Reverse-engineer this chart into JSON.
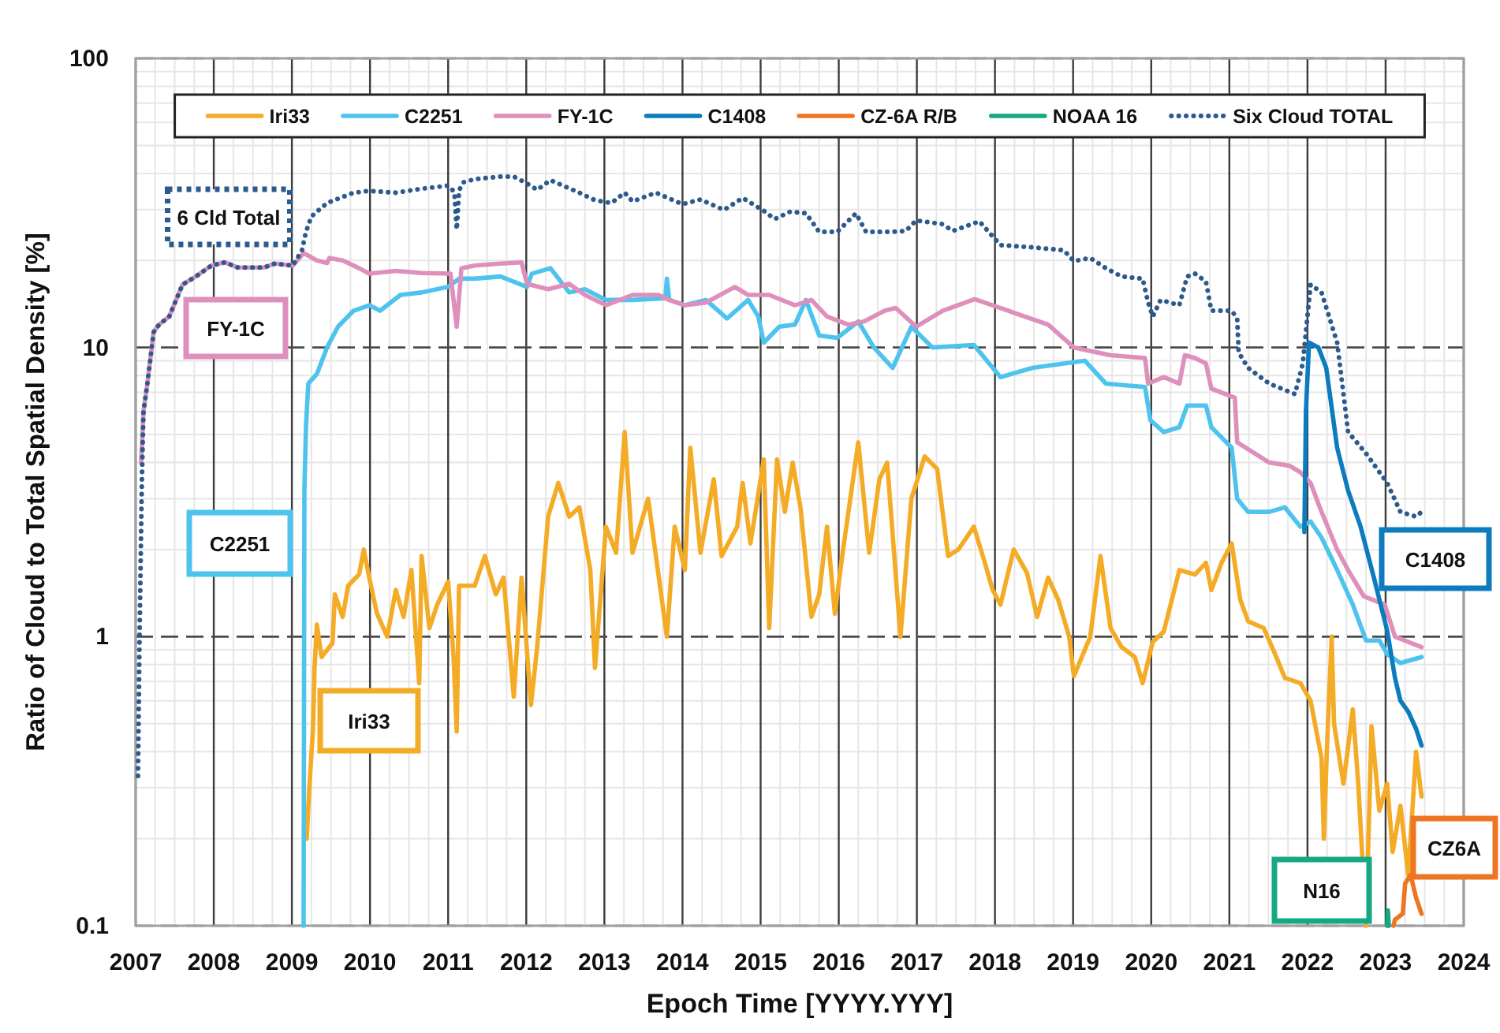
{
  "chart_data": {
    "type": "line",
    "xlabel": "Epoch Time [YYYY.YYY]",
    "ylabel": "Ratio of Cloud to Total Spatial Density [%]",
    "xlim": [
      2007,
      2024
    ],
    "xticks": [
      2007,
      2008,
      2009,
      2010,
      2011,
      2012,
      2013,
      2014,
      2015,
      2016,
      2017,
      2018,
      2019,
      2020,
      2021,
      2022,
      2023,
      2024
    ],
    "ylim": [
      0.1,
      100
    ],
    "yticks": [
      0.1,
      1,
      10,
      100
    ],
    "log": true,
    "grid": true,
    "legend": "top",
    "line_style": "solid",
    "annotations": [
      "Iri33",
      "C2251",
      "FY-1C",
      "C1408",
      "CZ6A",
      "N16",
      "6 Cld Total"
    ],
    "series": [
      {
        "name": "Iri33",
        "color": "#f4ab25",
        "x": [
          2009.19,
          2009.22,
          2009.27,
          2009.29,
          2009.32,
          2009.38,
          2009.52,
          2009.55,
          2009.65,
          2009.72,
          2009.86,
          2009.92,
          2009.99,
          2010.09,
          2010.22,
          2010.33,
          2010.43,
          2010.53,
          2010.63,
          2010.66,
          2010.76,
          2010.86,
          2011.0,
          2011.07,
          2011.11,
          2011.14,
          2011.34,
          2011.47,
          2011.61,
          2011.71,
          2011.84,
          2011.94,
          2012.06,
          2012.14,
          2012.28,
          2012.41,
          2012.55,
          2012.68,
          2012.82,
          2012.88,
          2013.02,
          2013.15,
          2013.26,
          2013.36,
          2013.56,
          2013.8,
          2013.9,
          2014.03,
          2014.1,
          2014.23,
          2014.4,
          2014.5,
          2014.7,
          2014.77,
          2014.87,
          2015.04,
          2015.11,
          2015.21,
          2015.31,
          2015.41,
          2015.51,
          2015.65,
          2015.75,
          2015.85,
          2015.95,
          2016.05,
          2016.25,
          2016.39,
          2016.52,
          2016.62,
          2016.79,
          2016.93,
          2017.1,
          2017.26,
          2017.4,
          2017.53,
          2017.73,
          2017.87,
          2017.97,
          2018.07,
          2018.24,
          2018.41,
          2018.54,
          2018.68,
          2018.81,
          2018.95,
          2019.01,
          2019.22,
          2019.35,
          2019.48,
          2019.62,
          2019.79,
          2019.89,
          2020.02,
          2020.16,
          2020.36,
          2020.56,
          2020.7,
          2020.77,
          2020.9,
          2021.03,
          2021.14,
          2021.24,
          2021.44,
          2021.57,
          2021.71,
          2021.91,
          2022.04,
          2022.18,
          2022.21,
          2022.25,
          2022.31,
          2022.34,
          2022.46,
          2022.58,
          2022.65,
          2022.75,
          2022.82,
          2022.92,
          2023.02,
          2023.09,
          2023.19,
          2023.29,
          2023.39,
          2023.46
        ],
        "values": [
          0.2,
          0.29,
          0.48,
          0.78,
          1.1,
          0.85,
          0.95,
          1.4,
          1.17,
          1.5,
          1.64,
          2.0,
          1.6,
          1.2,
          1.0,
          1.45,
          1.17,
          1.7,
          0.69,
          1.9,
          1.07,
          1.29,
          1.55,
          0.85,
          0.47,
          1.5,
          1.5,
          1.9,
          1.4,
          1.6,
          0.62,
          1.6,
          0.58,
          0.92,
          2.6,
          3.4,
          2.6,
          2.8,
          1.7,
          0.78,
          2.4,
          1.95,
          5.1,
          1.95,
          3.0,
          1.0,
          2.4,
          1.7,
          4.5,
          1.95,
          3.5,
          1.9,
          2.4,
          3.4,
          2.1,
          4.1,
          1.07,
          4.1,
          2.7,
          4.0,
          2.8,
          1.17,
          1.4,
          2.4,
          1.2,
          1.95,
          4.7,
          1.95,
          3.5,
          4.0,
          1.0,
          3.0,
          4.2,
          3.8,
          1.9,
          2.0,
          2.4,
          1.8,
          1.45,
          1.29,
          2.0,
          1.66,
          1.17,
          1.6,
          1.34,
          1.0,
          0.73,
          1.0,
          1.9,
          1.07,
          0.92,
          0.85,
          0.69,
          0.96,
          1.04,
          1.7,
          1.64,
          1.8,
          1.45,
          1.8,
          2.1,
          1.34,
          1.13,
          1.07,
          0.89,
          0.72,
          0.69,
          0.6,
          0.38,
          0.2,
          0.42,
          1.0,
          0.5,
          0.31,
          0.56,
          0.31,
          0.1,
          0.49,
          0.25,
          0.31,
          0.18,
          0.26,
          0.15,
          0.4,
          0.28
        ]
      },
      {
        "name": "C2251",
        "color": "#4ec3ee",
        "x": [
          2009.15,
          2009.16,
          2009.18,
          2009.21,
          2009.32,
          2009.45,
          2009.59,
          2009.79,
          2009.99,
          2010.13,
          2010.39,
          2010.66,
          2011.0,
          2011.14,
          2011.34,
          2011.67,
          2012.01,
          2012.07,
          2012.31,
          2012.55,
          2012.75,
          2013.02,
          2013.36,
          2013.78,
          2013.8,
          2013.83,
          2014.03,
          2014.3,
          2014.57,
          2014.84,
          2014.97,
          2015.04,
          2015.24,
          2015.44,
          2015.58,
          2015.75,
          2015.98,
          2016.25,
          2016.45,
          2016.69,
          2016.93,
          2017.2,
          2017.73,
          2018.07,
          2018.48,
          2018.88,
          2019.15,
          2019.42,
          2019.92,
          2019.99,
          2020.16,
          2020.36,
          2020.46,
          2020.7,
          2020.77,
          2021.03,
          2021.1,
          2021.24,
          2021.51,
          2021.71,
          2021.91,
          2022.04,
          2022.18,
          2022.38,
          2022.58,
          2022.75,
          2022.92,
          2023.02,
          2023.19,
          2023.46
        ],
        "values": [
          0.1,
          3.2,
          5.3,
          7.5,
          8.1,
          10,
          11.8,
          13.4,
          14,
          13.4,
          15.2,
          15.5,
          16.2,
          17.3,
          17.3,
          17.6,
          16.2,
          18,
          18.8,
          15.5,
          15.9,
          14.6,
          14.6,
          14.8,
          17.3,
          14.6,
          14,
          14.6,
          12.6,
          14.6,
          12.8,
          10.4,
          11.8,
          12,
          14.6,
          11,
          10.8,
          12.3,
          10,
          8.5,
          11.8,
          10,
          10.2,
          7.9,
          8.5,
          8.8,
          9,
          7.5,
          7.3,
          5.6,
          5.1,
          5.3,
          6.3,
          6.3,
          5.3,
          4.5,
          3.0,
          2.7,
          2.7,
          2.8,
          2.4,
          2.5,
          2.2,
          1.7,
          1.29,
          0.97,
          0.97,
          0.87,
          0.81,
          0.85
        ]
      },
      {
        "name": "FY-1C",
        "color": "#de8fbb",
        "x": [
          2007.07,
          2007.1,
          2007.15,
          2007.23,
          2007.3,
          2007.43,
          2007.6,
          2007.77,
          2007.97,
          2008.14,
          2008.31,
          2008.64,
          2008.78,
          2009.01,
          2009.15,
          2009.32,
          2009.45,
          2009.48,
          2009.65,
          2009.86,
          2009.99,
          2010.33,
          2010.66,
          2011.03,
          2011.11,
          2011.17,
          2011.34,
          2011.67,
          2011.94,
          2012.01,
          2012.28,
          2012.55,
          2012.75,
          2013.02,
          2013.36,
          2013.69,
          2013.83,
          2014.03,
          2014.3,
          2014.67,
          2014.84,
          2015.11,
          2015.44,
          2015.65,
          2015.85,
          2016.12,
          2016.32,
          2016.59,
          2016.73,
          2016.99,
          2017.33,
          2017.74,
          2018.07,
          2018.27,
          2018.68,
          2019.01,
          2019.48,
          2019.92,
          2019.96,
          2020.16,
          2020.36,
          2020.43,
          2020.56,
          2020.7,
          2020.77,
          2021.07,
          2021.1,
          2021.51,
          2021.77,
          2021.91,
          2022.04,
          2022.18,
          2022.38,
          2022.52,
          2022.72,
          2022.99,
          2023.12,
          2023.46
        ],
        "values": [
          4.0,
          6.0,
          7.5,
          11.3,
          12,
          12.8,
          16.5,
          17.6,
          19.2,
          19.7,
          18.9,
          18.9,
          19.5,
          19.2,
          21.2,
          20,
          19.6,
          20.4,
          20,
          18.8,
          18,
          18.4,
          18.1,
          18,
          11.8,
          18.8,
          19.2,
          19.5,
          19.7,
          16.6,
          15.9,
          16.6,
          15.2,
          14,
          15.2,
          15.2,
          14.6,
          14,
          14.3,
          16.2,
          15.2,
          15.2,
          14,
          14.6,
          12.8,
          12,
          12.3,
          13.4,
          13.7,
          11.8,
          13.4,
          14.7,
          13.7,
          13.1,
          12,
          10,
          9.4,
          9.2,
          7.5,
          7.9,
          7.5,
          9.4,
          9.2,
          8.8,
          7.2,
          6.7,
          4.7,
          4.0,
          3.9,
          3.7,
          3.4,
          2.7,
          2.0,
          1.7,
          1.38,
          1.29,
          1.0,
          0.92
        ]
      },
      {
        "name": "C1408",
        "color": "#0c7cbf",
        "x": [
          2021.96,
          2021.98,
          2022.02,
          2022.14,
          2022.24,
          2022.38,
          2022.52,
          2022.68,
          2022.85,
          2023.02,
          2023.12,
          2023.19,
          2023.29,
          2023.39,
          2023.46
        ],
        "values": [
          2.3,
          6.0,
          10.4,
          10.0,
          8.5,
          4.5,
          3.2,
          2.4,
          1.6,
          1.05,
          0.72,
          0.6,
          0.55,
          0.48,
          0.42
        ]
      },
      {
        "name": "CZ-6A R/B",
        "color": "#ee7623",
        "x": [
          2023.1,
          2023.12,
          2023.22,
          2023.25,
          2023.32,
          2023.39,
          2023.46
        ],
        "values": [
          0.1,
          0.105,
          0.11,
          0.14,
          0.15,
          0.125,
          0.11
        ]
      },
      {
        "name": "NOAA 16",
        "color": "#14a984",
        "x": [
          2023.02,
          2023.03,
          2023.04
        ],
        "values": [
          0.1,
          0.113,
          0.1
        ]
      },
      {
        "name": "Six Cloud TOTAL",
        "color": "#2c5a8c",
        "line_style": "dotted",
        "x": [
          2007.03,
          2007.05,
          2007.08,
          2007.1,
          2007.15,
          2007.23,
          2007.3,
          2007.43,
          2007.6,
          2007.77,
          2007.97,
          2008.14,
          2008.31,
          2008.64,
          2008.78,
          2009.01,
          2009.13,
          2009.18,
          2009.25,
          2009.45,
          2009.79,
          2009.99,
          2010.33,
          2010.66,
          2011.0,
          2011.08,
          2011.11,
          2011.14,
          2011.2,
          2011.34,
          2011.67,
          2011.84,
          2012.01,
          2012.14,
          2012.31,
          2012.52,
          2012.68,
          2012.88,
          2013.09,
          2013.26,
          2013.36,
          2013.66,
          2014.0,
          2014.23,
          2014.53,
          2014.77,
          2015.04,
          2015.18,
          2015.38,
          2015.58,
          2015.75,
          2015.98,
          2016.22,
          2016.35,
          2016.66,
          2016.86,
          2016.99,
          2017.33,
          2017.46,
          2017.8,
          2018.07,
          2018.48,
          2018.88,
          2019.01,
          2019.22,
          2019.42,
          2019.62,
          2019.89,
          2019.96,
          2020.02,
          2020.12,
          2020.36,
          2020.46,
          2020.56,
          2020.7,
          2020.77,
          2021.03,
          2021.1,
          2021.12,
          2021.24,
          2021.51,
          2021.84,
          2021.94,
          2022.04,
          2022.18,
          2022.38,
          2022.52,
          2022.75,
          2023.02,
          2023.19,
          2023.39,
          2023.46
        ],
        "values": [
          0.33,
          1.0,
          3.5,
          6.0,
          7.5,
          11.3,
          12,
          12.8,
          16.5,
          17.6,
          19.2,
          19.7,
          18.9,
          18.9,
          19.5,
          19.2,
          21.7,
          25.1,
          28.4,
          31.6,
          34.3,
          34.8,
          34.3,
          35.4,
          36.3,
          34.5,
          25.6,
          35,
          37.3,
          38.2,
          39,
          39,
          36.9,
          35.1,
          37.9,
          35.8,
          34.3,
          32.3,
          31.6,
          34.3,
          32,
          34.3,
          31.3,
          32.5,
          29.9,
          32.9,
          29.7,
          27.8,
          29.5,
          29.1,
          25.1,
          25.1,
          29.1,
          25.1,
          25.1,
          25.3,
          27.5,
          26.7,
          25.3,
          27.3,
          22.6,
          22.2,
          21.7,
          19.9,
          20.4,
          18.8,
          17.6,
          17.3,
          14.3,
          12.8,
          14.6,
          14,
          17.6,
          18,
          16.9,
          13.4,
          13.4,
          12.6,
          9.6,
          8.5,
          7.5,
          6.9,
          8.8,
          16.5,
          15.5,
          10.4,
          5.1,
          4.3,
          3.4,
          2.7,
          2.6,
          2.7
        ]
      }
    ]
  }
}
